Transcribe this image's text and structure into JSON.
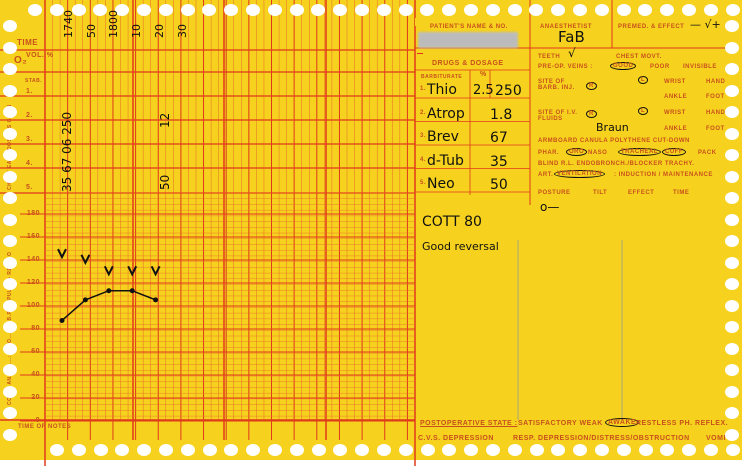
{
  "left": {
    "time_label": "TIME",
    "o2_label": "O₂",
    "vol_label": "VOL. %",
    "stab_label": "STAB.",
    "row_nums": [
      "1.",
      "2.",
      "3.",
      "4.",
      "5."
    ],
    "side_text_top": "CHART EACH DOSE AS GIVEN",
    "side_text_bottom": "CODE: ANAES....: OP O...: O: B.P. V: PULSE • RESP. O",
    "scale": [
      "180",
      "160",
      "140",
      "120",
      "100",
      "80",
      "60",
      "40",
      "20",
      "0"
    ],
    "notes_label": "TIME OF NOTES"
  },
  "times": [
    "1740",
    "50",
    "1800",
    "10",
    "20",
    "30"
  ],
  "doses": {
    "col1": "35 67 06 250",
    "col4_row2": "12",
    "col4_row5": "50"
  },
  "vitals": {
    "systolic": [
      145,
      140,
      130,
      130,
      130
    ],
    "pulse": [
      87,
      105,
      113,
      113,
      105
    ]
  },
  "header": {
    "patient_label": "PATIENT'S NAME & NO.",
    "anaesthetist_label": "ANAESTHETIST",
    "anaesthetist_value": "FaB",
    "premed_label": "PREMED. & EFFECT",
    "premed_value": "— √+"
  },
  "drugs": {
    "title": "DRUGS & DOSAGE",
    "barbiturate_label": "BARBITURATE",
    "pct_label": "%",
    "rows": [
      {
        "n": "1.",
        "name": "Thio",
        "pct": "2.5",
        "dose": "250"
      },
      {
        "n": "2.",
        "name": "Atrop",
        "dose": "1.8"
      },
      {
        "n": "3.",
        "name": "Brev",
        "dose": "67"
      },
      {
        "n": "4.",
        "name": "d-Tub",
        "dose": "35"
      },
      {
        "n": "5.",
        "name": "Neo",
        "dose": "50"
      }
    ]
  },
  "checks": {
    "teeth": "TEETH",
    "chest": "CHEST MOVT.",
    "preop": "PRE-OP. VEINS :",
    "good": "GOOD",
    "poor": "POOR",
    "invisible": "INVISIBLE",
    "barb_site": "SITE OF BARB. INJ.",
    "iv_site": "SITE OF I.V. FLUIDS",
    "r": "R",
    "l": "L",
    "wrist": "WRIST",
    "hand": "HAND",
    "ankle": "ANKLE",
    "foot": "FOOT",
    "braun": "Braun",
    "line1": "ARMBOARD   CANULA   POLYTHENE   CUT-DOWN",
    "phar": "PHAR.",
    "oro": "ORO",
    "naso": "NASO",
    "tracheal": "TRACHEAL",
    "cuff": "CUFF",
    "pack": "PACK",
    "line3": "BLIND  R.L. ENDOBRONCH./BLOCKER  TRACHY.",
    "art": "ART.",
    "vent": "VENTILATION",
    "ind": ": INDUCTION / MAINTENANCE",
    "posture": "POSTURE",
    "tilt": "TILT",
    "effect": "EFFECT",
    "time": "TIME",
    "posture_value": "o—"
  },
  "notes": {
    "line1": "COTT 80",
    "line2": "Good reversal"
  },
  "post": {
    "label": "POSTOPERATIVE STATE :",
    "opts": "SATISFACTORY  WEAK",
    "awake": "AWAKE",
    "opts2": "RESTLESS  PH. REFLEX.",
    "cvs": "C.V.S. DEPRESSION",
    "resp": "RESP. DEPRESSION/DISTRESS/OBSTRUCTION",
    "vomit": "VOMIT"
  }
}
